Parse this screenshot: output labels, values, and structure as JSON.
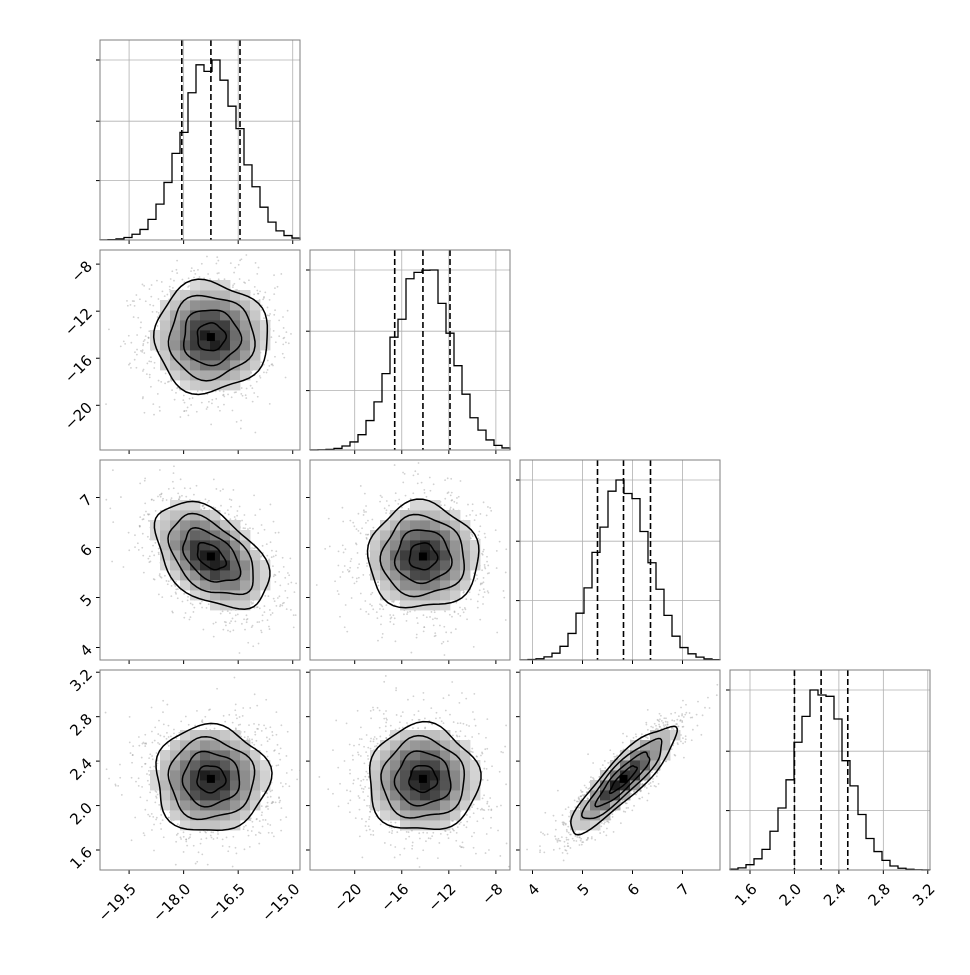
{
  "chart_data": {
    "type": "corner",
    "colors": {
      "frame": "#7f7f7f",
      "grid": "#b0b0b0",
      "line": "#000000",
      "points": "#9a9a9a",
      "density_dark": "#1a1a1a",
      "density_light": "#ffffff"
    },
    "grid": true,
    "parameters": [
      {
        "index": 0,
        "range": [
          -20.3,
          -14.8
        ],
        "ticks": [
          -19.5,
          -18.0,
          -16.5,
          -15.0
        ],
        "tick_labels": [
          "−19.5",
          "−18.0",
          "−16.5",
          "−15.0"
        ],
        "quantiles": [
          -18.05,
          -17.25,
          -16.45
        ],
        "mean": -17.25,
        "sd": 0.78,
        "hist_bins": 25
      },
      {
        "index": 1,
        "range": [
          -23.8,
          -6.8
        ],
        "ticks": [
          -20,
          -16,
          -12,
          -8
        ],
        "tick_labels": [
          "−20",
          "−16",
          "−12",
          "−8"
        ],
        "quantiles": [
          -16.6,
          -14.2,
          -11.9
        ],
        "mean": -14.2,
        "sd": 2.35,
        "hist_bins": 25
      },
      {
        "index": 2,
        "range": [
          3.75,
          7.75
        ],
        "ticks": [
          4,
          5,
          6,
          7
        ],
        "tick_labels": [
          "4",
          "5",
          "6",
          "7"
        ],
        "quantiles": [
          5.3,
          5.82,
          6.36
        ],
        "mean": 5.82,
        "sd": 0.53,
        "hist_bins": 25
      },
      {
        "index": 3,
        "range": [
          1.42,
          3.22
        ],
        "ticks": [
          1.6,
          2.0,
          2.4,
          2.8,
          3.2
        ],
        "tick_labels": [
          "1.6",
          "2.0",
          "2.4",
          "2.8",
          "3.2"
        ],
        "quantiles": [
          2.0,
          2.24,
          2.48
        ],
        "mean": 2.24,
        "sd": 0.24,
        "hist_bins": 25
      }
    ],
    "correlations": [
      {
        "pair": [
          0,
          1
        ],
        "rho": 0.0
      },
      {
        "pair": [
          0,
          2
        ],
        "rho": -0.45
      },
      {
        "pair": [
          1,
          2
        ],
        "rho": 0.0
      },
      {
        "pair": [
          0,
          3
        ],
        "rho": 0.0
      },
      {
        "pair": [
          1,
          3
        ],
        "rho": 0.0
      },
      {
        "pair": [
          2,
          3
        ],
        "rho": 0.88
      }
    ],
    "contour_levels_sigma": [
      0.5,
      1.0,
      1.5,
      2.0
    ]
  }
}
